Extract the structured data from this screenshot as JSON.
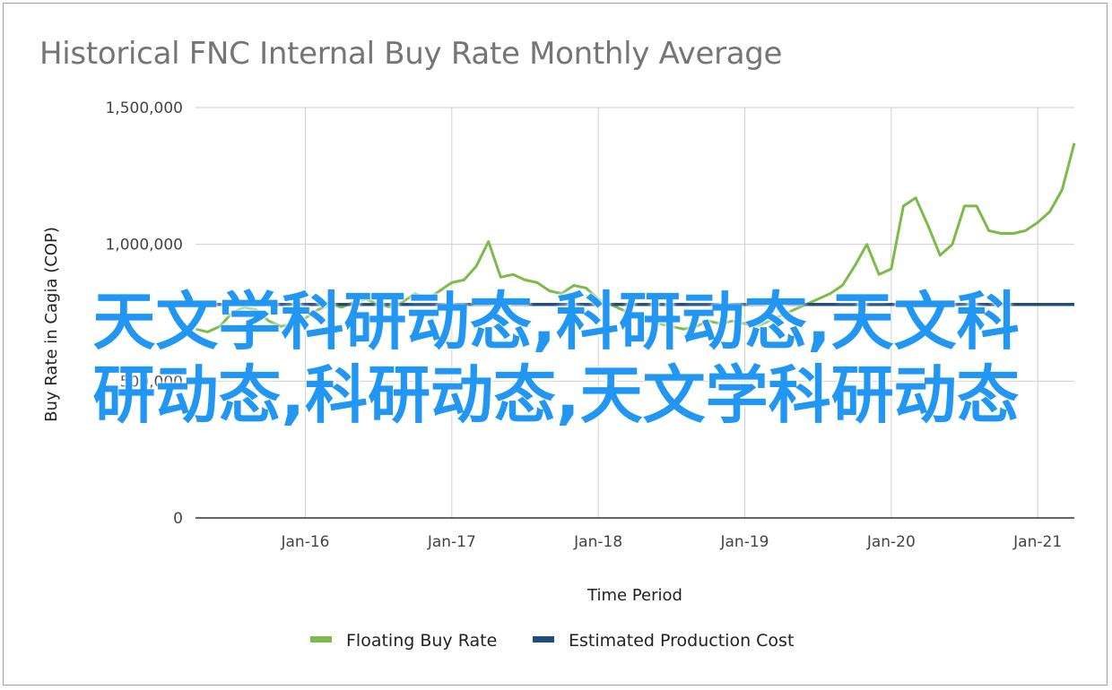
{
  "chart_data": {
    "type": "line",
    "title": "Historical FNC Internal Buy Rate Monthly Average",
    "xlabel": "Time Period",
    "ylabel": "Buy Rate in Cagia (COP)",
    "ylim": [
      0,
      1500000
    ],
    "yticks": [
      0,
      500000,
      1000000,
      1500000
    ],
    "ytick_labels": [
      "0",
      "500,000",
      "1,000,000",
      "1,500,000"
    ],
    "xlim": [
      "2015-04",
      "2021-04"
    ],
    "xticks": [
      "2016-01",
      "2017-01",
      "2018-01",
      "2019-01",
      "2020-01",
      "2021-01"
    ],
    "xtick_labels": [
      "Jan-16",
      "Jan-17",
      "Jan-18",
      "Jan-19",
      "Jan-20",
      "Jan-21"
    ],
    "grid": "vertical at x ticks, horizontal at y ticks",
    "legend": "bottom",
    "series": [
      {
        "name": "Floating Buy Rate",
        "color": "#7cbb4a",
        "points": [
          [
            "2015-04",
            690000
          ],
          [
            "2015-05",
            680000
          ],
          [
            "2015-06",
            700000
          ],
          [
            "2015-07",
            750000
          ],
          [
            "2015-08",
            770000
          ],
          [
            "2015-09",
            760000
          ],
          [
            "2015-10",
            720000
          ],
          [
            "2015-11",
            700000
          ],
          [
            "2015-12",
            710000
          ],
          [
            "2016-01",
            730000
          ],
          [
            "2016-02",
            760000
          ],
          [
            "2016-03",
            780000
          ],
          [
            "2016-04",
            770000
          ],
          [
            "2016-05",
            790000
          ],
          [
            "2016-06",
            800000
          ],
          [
            "2016-07",
            780000
          ],
          [
            "2016-08",
            770000
          ],
          [
            "2016-09",
            790000
          ],
          [
            "2016-10",
            820000
          ],
          [
            "2016-11",
            800000
          ],
          [
            "2016-12",
            830000
          ],
          [
            "2017-01",
            860000
          ],
          [
            "2017-02",
            870000
          ],
          [
            "2017-03",
            920000
          ],
          [
            "2017-04",
            1010000
          ],
          [
            "2017-05",
            880000
          ],
          [
            "2017-06",
            890000
          ],
          [
            "2017-07",
            870000
          ],
          [
            "2017-08",
            860000
          ],
          [
            "2017-09",
            830000
          ],
          [
            "2017-10",
            820000
          ],
          [
            "2017-11",
            850000
          ],
          [
            "2017-12",
            840000
          ],
          [
            "2018-01",
            800000
          ],
          [
            "2018-02",
            780000
          ],
          [
            "2018-03",
            760000
          ],
          [
            "2018-04",
            740000
          ],
          [
            "2018-05",
            720000
          ],
          [
            "2018-06",
            710000
          ],
          [
            "2018-07",
            700000
          ],
          [
            "2018-08",
            690000
          ],
          [
            "2018-09",
            700000
          ],
          [
            "2018-10",
            720000
          ],
          [
            "2018-11",
            710000
          ],
          [
            "2018-12",
            720000
          ],
          [
            "2019-01",
            710000
          ],
          [
            "2019-02",
            700000
          ],
          [
            "2019-03",
            720000
          ],
          [
            "2019-04",
            740000
          ],
          [
            "2019-05",
            760000
          ],
          [
            "2019-06",
            780000
          ],
          [
            "2019-07",
            800000
          ],
          [
            "2019-08",
            820000
          ],
          [
            "2019-09",
            850000
          ],
          [
            "2019-10",
            920000
          ],
          [
            "2019-11",
            1000000
          ],
          [
            "2019-12",
            890000
          ],
          [
            "2020-01",
            910000
          ],
          [
            "2020-02",
            1140000
          ],
          [
            "2020-03",
            1170000
          ],
          [
            "2020-04",
            1070000
          ],
          [
            "2020-05",
            960000
          ],
          [
            "2020-06",
            1000000
          ],
          [
            "2020-07",
            1140000
          ],
          [
            "2020-08",
            1140000
          ],
          [
            "2020-09",
            1050000
          ],
          [
            "2020-10",
            1040000
          ],
          [
            "2020-11",
            1040000
          ],
          [
            "2020-12",
            1050000
          ],
          [
            "2021-01",
            1080000
          ],
          [
            "2021-02",
            1120000
          ],
          [
            "2021-03",
            1200000
          ],
          [
            "2021-04",
            1370000
          ]
        ]
      },
      {
        "name": "Estimated Production Cost",
        "color": "#1f4e79",
        "points": [
          [
            "2015-04",
            780000
          ],
          [
            "2021-04",
            780000
          ]
        ]
      }
    ]
  },
  "watermark": {
    "text": "天文学科研动态,科研动态,天文科研动态,科研动态,天文学科研动态",
    "lines": [
      "天文学科研动态,科研动态,天文科",
      "研动态,科研动态,天文学科研动态"
    ],
    "color": "#2196f3"
  }
}
